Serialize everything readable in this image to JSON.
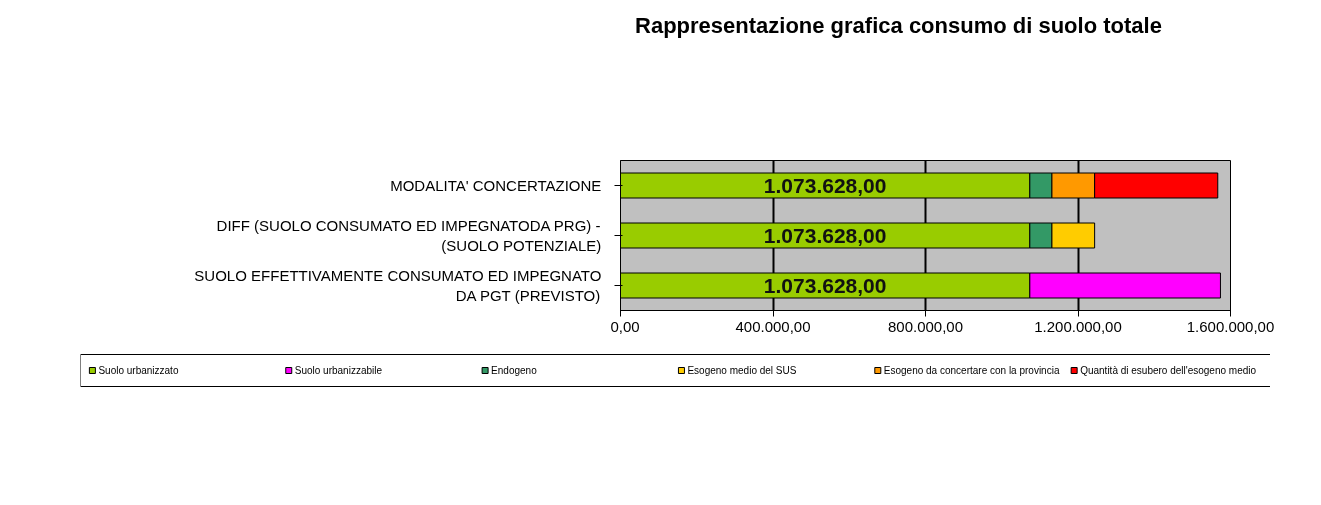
{
  "chart_data": {
    "type": "bar",
    "orientation": "horizontal",
    "stacked": true,
    "title": "Rappresentazione grafica consumo di suolo totale",
    "categories": [
      "MODALITA' CONCERTAZIONE",
      "DIFF (SUOLO CONSUMATO ED IMPEGNATODA PRG) -\n(SUOLO POTENZIALE)",
      "SUOLO EFFETTIVAMENTE CONSUMATO ED IMPEGNATO\nDA PGT (PREVISTO)"
    ],
    "series": [
      {
        "name": "Suolo urbanizzato",
        "color": "#99cc00",
        "values": [
          1073628,
          1073628,
          1073628
        ],
        "value_labels": [
          "1.073.628,00",
          "1.073.628,00",
          "1.073.628,00"
        ]
      },
      {
        "name": "Suolo urbanizzabile",
        "color": "#ff00ff",
        "values": [
          null,
          null,
          500000
        ]
      },
      {
        "name": "Endogeno",
        "color": "#339966",
        "values": [
          58000,
          58000,
          null
        ]
      },
      {
        "name": "Esogeno medio del SUS",
        "color": "#ffcc00",
        "values": [
          null,
          112000,
          null
        ]
      },
      {
        "name": "Esogeno da concertare con la provincia",
        "color": "#ff9900",
        "values": [
          112000,
          null,
          null
        ]
      },
      {
        "name": "Quantità di esubero dell'esogeno medio",
        "color": "#ff0000",
        "values": [
          323000,
          null,
          null
        ]
      }
    ],
    "xlim": [
      0,
      1600000
    ],
    "xticks": [
      {
        "value": 0,
        "label": "0,00"
      },
      {
        "value": 400000,
        "label": "400.000,00"
      },
      {
        "value": 800000,
        "label": "800.000,00"
      },
      {
        "value": 1200000,
        "label": "1.200.000,00"
      },
      {
        "value": 1600000,
        "label": "1.600.000,00"
      }
    ],
    "grid": "x",
    "legend": "bottom"
  }
}
